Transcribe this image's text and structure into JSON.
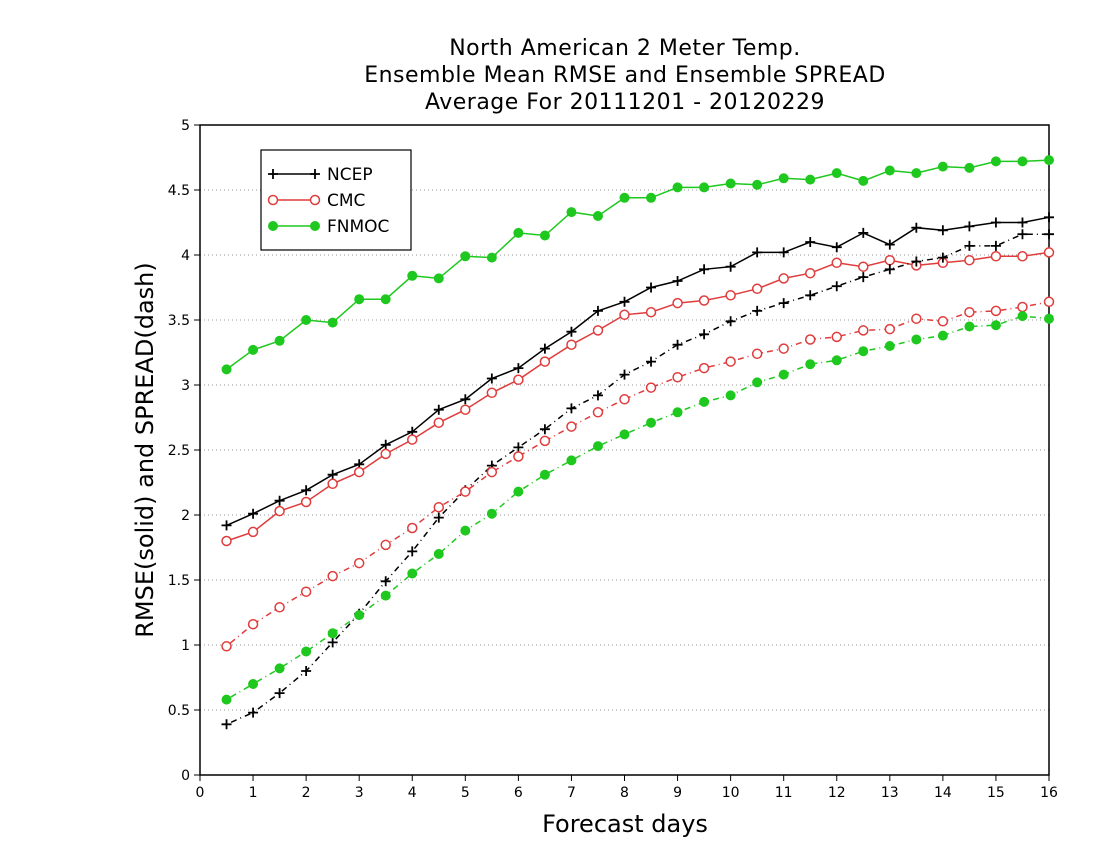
{
  "chart_data": {
    "type": "line",
    "title": "North American 2 Meter Temp.",
    "subtitle": "Ensemble Mean RMSE and Ensemble SPREAD",
    "subtitle2": "Average For 20111201 - 20120229",
    "xlabel": "Forecast days",
    "ylabel": "RMSE(solid) and SPREAD(dash)",
    "xlim": [
      0,
      16
    ],
    "ylim": [
      0,
      5
    ],
    "xticks": [
      0,
      1,
      2,
      3,
      4,
      5,
      6,
      7,
      8,
      9,
      10,
      11,
      12,
      13,
      14,
      15,
      16
    ],
    "yticks": [
      0,
      0.5,
      1,
      1.5,
      2,
      2.5,
      3,
      3.5,
      4,
      4.5,
      5
    ],
    "grid": "horizontal-dotted",
    "legend_position": "top-left",
    "x": [
      0.5,
      1,
      1.5,
      2,
      2.5,
      3,
      3.5,
      4,
      4.5,
      5,
      5.5,
      6,
      6.5,
      7,
      7.5,
      8,
      8.5,
      9,
      9.5,
      10,
      10.5,
      11,
      11.5,
      12,
      12.5,
      13,
      13.5,
      14,
      14.5,
      15,
      15.5,
      16
    ],
    "series": [
      {
        "name": "NCEP",
        "metric": "RMSE",
        "style": "solid",
        "marker": "plus",
        "color": "#000000",
        "values": [
          1.92,
          2.01,
          2.11,
          2.19,
          2.31,
          2.39,
          2.54,
          2.64,
          2.81,
          2.89,
          3.05,
          3.13,
          3.28,
          3.41,
          3.57,
          3.64,
          3.75,
          3.8,
          3.89,
          3.91,
          4.02,
          4.02,
          4.1,
          4.06,
          4.17,
          4.08,
          4.21,
          4.19,
          4.22,
          4.25,
          4.25,
          4.29
        ]
      },
      {
        "name": "CMC",
        "metric": "RMSE",
        "style": "solid",
        "marker": "open-circle",
        "color": "#e03c3c",
        "values": [
          1.8,
          1.87,
          2.03,
          2.1,
          2.24,
          2.33,
          2.47,
          2.58,
          2.71,
          2.81,
          2.94,
          3.04,
          3.18,
          3.31,
          3.42,
          3.54,
          3.56,
          3.63,
          3.65,
          3.69,
          3.74,
          3.82,
          3.86,
          3.94,
          3.91,
          3.96,
          3.92,
          3.94,
          3.96,
          3.99,
          3.99,
          4.02
        ]
      },
      {
        "name": "FNMOC",
        "metric": "RMSE",
        "style": "solid",
        "marker": "filled-circle",
        "color": "#1ec81e",
        "values": [
          3.12,
          3.27,
          3.34,
          3.5,
          3.48,
          3.66,
          3.66,
          3.84,
          3.82,
          3.99,
          3.98,
          4.17,
          4.15,
          4.33,
          4.3,
          4.44,
          4.44,
          4.52,
          4.52,
          4.55,
          4.54,
          4.59,
          4.58,
          4.63,
          4.57,
          4.65,
          4.63,
          4.68,
          4.67,
          4.72,
          4.72,
          4.73
        ]
      },
      {
        "name": "NCEP",
        "metric": "SPREAD",
        "style": "dash",
        "marker": "plus",
        "color": "#000000",
        "values": [
          0.39,
          0.48,
          0.63,
          0.8,
          1.02,
          1.24,
          1.49,
          1.72,
          1.98,
          2.19,
          2.38,
          2.52,
          2.66,
          2.82,
          2.92,
          3.08,
          3.18,
          3.31,
          3.39,
          3.49,
          3.57,
          3.63,
          3.69,
          3.76,
          3.83,
          3.89,
          3.95,
          3.98,
          4.07,
          4.07,
          4.16,
          4.16
        ]
      },
      {
        "name": "CMC",
        "metric": "SPREAD",
        "style": "dash",
        "marker": "open-circle",
        "color": "#e03c3c",
        "values": [
          0.99,
          1.16,
          1.29,
          1.41,
          1.53,
          1.63,
          1.77,
          1.9,
          2.06,
          2.18,
          2.33,
          2.45,
          2.57,
          2.68,
          2.79,
          2.89,
          2.98,
          3.06,
          3.13,
          3.18,
          3.24,
          3.28,
          3.35,
          3.37,
          3.42,
          3.43,
          3.51,
          3.49,
          3.56,
          3.57,
          3.6,
          3.64
        ]
      },
      {
        "name": "FNMOC",
        "metric": "SPREAD",
        "style": "dash",
        "marker": "filled-circle",
        "color": "#1ec81e",
        "values": [
          0.58,
          0.7,
          0.82,
          0.95,
          1.09,
          1.23,
          1.38,
          1.55,
          1.7,
          1.88,
          2.01,
          2.18,
          2.31,
          2.42,
          2.53,
          2.62,
          2.71,
          2.79,
          2.87,
          2.92,
          3.02,
          3.08,
          3.16,
          3.19,
          3.26,
          3.3,
          3.35,
          3.38,
          3.45,
          3.46,
          3.53,
          3.51
        ]
      }
    ],
    "legend": [
      {
        "label": "NCEP",
        "marker": "plus",
        "color": "#000000"
      },
      {
        "label": "CMC",
        "marker": "open-circle",
        "color": "#e03c3c"
      },
      {
        "label": "FNMOC",
        "marker": "filled-circle",
        "color": "#1ec81e"
      }
    ]
  }
}
